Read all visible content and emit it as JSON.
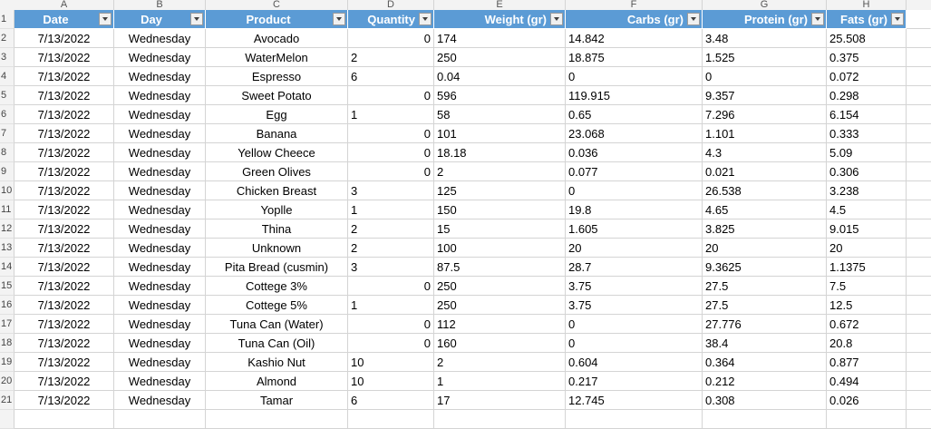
{
  "column_letters": [
    "A",
    "B",
    "C",
    "D",
    "E",
    "F",
    "G",
    "H"
  ],
  "headers": [
    "Date",
    "Day",
    "Product",
    "Quantity",
    "Weight (gr)",
    "Carbs (gr)",
    "Protein (gr)",
    "Fats (gr)"
  ],
  "row_numbers": [
    "1",
    "2",
    "3",
    "4",
    "5",
    "6",
    "7",
    "8",
    "9",
    "10",
    "11",
    "12",
    "13",
    "14",
    "15",
    "16",
    "17",
    "18",
    "19",
    "20",
    "21"
  ],
  "rows": [
    {
      "date": "7/13/2022",
      "day": "Wednesday",
      "product": "Avocado",
      "quantity": "0",
      "weight": "174",
      "carbs": "14.842",
      "protein": "3.48",
      "fats": "25.508"
    },
    {
      "date": "7/13/2022",
      "day": "Wednesday",
      "product": "WaterMelon",
      "quantity": "2",
      "weight": "250",
      "carbs": "18.875",
      "protein": "1.525",
      "fats": "0.375"
    },
    {
      "date": "7/13/2022",
      "day": "Wednesday",
      "product": "Espresso",
      "quantity": "6",
      "weight": "0.04",
      "carbs": "0",
      "protein": "0",
      "fats": "0.072"
    },
    {
      "date": "7/13/2022",
      "day": "Wednesday",
      "product": "Sweet Potato",
      "quantity": "0",
      "weight": "596",
      "carbs": "119.915",
      "protein": "9.357",
      "fats": "0.298"
    },
    {
      "date": "7/13/2022",
      "day": "Wednesday",
      "product": "Egg",
      "quantity": "1",
      "weight": "58",
      "carbs": "0.65",
      "protein": "7.296",
      "fats": "6.154"
    },
    {
      "date": "7/13/2022",
      "day": "Wednesday",
      "product": "Banana",
      "quantity": "0",
      "weight": "101",
      "carbs": "23.068",
      "protein": "1.101",
      "fats": "0.333"
    },
    {
      "date": "7/13/2022",
      "day": "Wednesday",
      "product": "Yellow Cheece",
      "quantity": "0",
      "weight": "18.18",
      "carbs": "0.036",
      "protein": "4.3",
      "fats": "5.09"
    },
    {
      "date": "7/13/2022",
      "day": "Wednesday",
      "product": "Green Olives",
      "quantity": "0",
      "weight": "2",
      "carbs": "0.077",
      "protein": "0.021",
      "fats": "0.306"
    },
    {
      "date": "7/13/2022",
      "day": "Wednesday",
      "product": "Chicken Breast",
      "quantity": "3",
      "weight": "125",
      "carbs": "0",
      "protein": "26.538",
      "fats": "3.238"
    },
    {
      "date": "7/13/2022",
      "day": "Wednesday",
      "product": "Yoplle",
      "quantity": "1",
      "weight": "150",
      "carbs": "19.8",
      "protein": "4.65",
      "fats": "4.5"
    },
    {
      "date": "7/13/2022",
      "day": "Wednesday",
      "product": "Thina",
      "quantity": "2",
      "weight": "15",
      "carbs": "1.605",
      "protein": "3.825",
      "fats": "9.015"
    },
    {
      "date": "7/13/2022",
      "day": "Wednesday",
      "product": "Unknown",
      "quantity": "2",
      "weight": "100",
      "carbs": "20",
      "protein": "20",
      "fats": "20"
    },
    {
      "date": "7/13/2022",
      "day": "Wednesday",
      "product": "Pita Bread (cusmin)",
      "quantity": "3",
      "weight": "87.5",
      "carbs": "28.7",
      "protein": "9.3625",
      "fats": "1.1375"
    },
    {
      "date": "7/13/2022",
      "day": "Wednesday",
      "product": "Cottege 3%",
      "quantity": "0",
      "weight": "250",
      "carbs": "3.75",
      "protein": "27.5",
      "fats": "7.5"
    },
    {
      "date": "7/13/2022",
      "day": "Wednesday",
      "product": "Cottege 5%",
      "quantity": "1",
      "weight": "250",
      "carbs": "3.75",
      "protein": "27.5",
      "fats": "12.5"
    },
    {
      "date": "7/13/2022",
      "day": "Wednesday",
      "product": "Tuna Can (Water)",
      "quantity": "0",
      "weight": "112",
      "carbs": "0",
      "protein": "27.776",
      "fats": "0.672"
    },
    {
      "date": "7/13/2022",
      "day": "Wednesday",
      "product": "Tuna Can (Oil)",
      "quantity": "0",
      "weight": "160",
      "carbs": "0",
      "protein": "38.4",
      "fats": "20.8"
    },
    {
      "date": "7/13/2022",
      "day": "Wednesday",
      "product": "Kashio Nut",
      "quantity": "10",
      "weight": "2",
      "carbs": "0.604",
      "protein": "0.364",
      "fats": "0.877"
    },
    {
      "date": "7/13/2022",
      "day": "Wednesday",
      "product": "Almond",
      "quantity": "10",
      "weight": "1",
      "carbs": "0.217",
      "protein": "0.212",
      "fats": "0.494"
    },
    {
      "date": "7/13/2022",
      "day": "Wednesday",
      "product": "Tamar",
      "quantity": "6",
      "weight": "17",
      "carbs": "12.745",
      "protein": "0.308",
      "fats": "0.026"
    }
  ]
}
